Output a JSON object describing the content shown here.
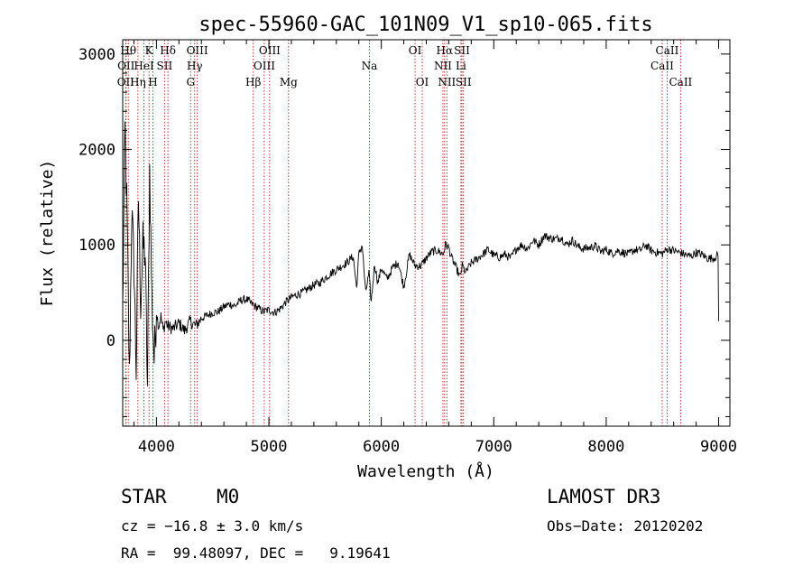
{
  "chart_data": {
    "type": "line",
    "title": "spec-55960-GAC_101N09_V1_sp10-065.fits",
    "xlabel": "Wavelength (Å)",
    "ylabel": "Flux (relative)",
    "xlim": [
      3700,
      9100
    ],
    "ylim": [
      -900,
      3150
    ],
    "xticks": [
      4000,
      5000,
      6000,
      7000,
      8000,
      9000
    ],
    "xtick_labels": [
      "4000",
      "5000",
      "6000",
      "7000",
      "8000",
      "9000"
    ],
    "yticks": [
      0,
      1000,
      2000,
      3000
    ],
    "ytick_labels": [
      "0",
      "1000",
      "2000",
      "3000"
    ],
    "line_color": "#000000",
    "marker_color": "#b22222",
    "spectrum": {
      "wavelength": [
        3700,
        3720,
        3740,
        3760,
        3780,
        3800,
        3820,
        3840,
        3860,
        3880,
        3900,
        3920,
        3940,
        3960,
        3980,
        4000,
        4020,
        4040,
        4060,
        4080,
        4100,
        4150,
        4200,
        4250,
        4300,
        4350,
        4400,
        4450,
        4500,
        4550,
        4600,
        4650,
        4700,
        4750,
        4800,
        4850,
        4900,
        4950,
        5000,
        5050,
        5100,
        5150,
        5200,
        5250,
        5300,
        5350,
        5400,
        5450,
        5500,
        5550,
        5600,
        5650,
        5700,
        5750,
        5780,
        5800,
        5830,
        5860,
        5890,
        5910,
        5940,
        5970,
        6000,
        6050,
        6100,
        6150,
        6200,
        6250,
        6300,
        6350,
        6400,
        6450,
        6500,
        6550,
        6570,
        6600,
        6620,
        6650,
        6680,
        6700,
        6720,
        6750,
        6800,
        6850,
        6900,
        6950,
        7000,
        7050,
        7100,
        7150,
        7200,
        7250,
        7300,
        7350,
        7400,
        7450,
        7500,
        7550,
        7600,
        7650,
        7700,
        7750,
        7800,
        7850,
        7900,
        7950,
        8000,
        8050,
        8100,
        8150,
        8200,
        8250,
        8300,
        8350,
        8400,
        8450,
        8500,
        8550,
        8600,
        8650,
        8700,
        8750,
        8800,
        8850,
        8900,
        8950,
        8980,
        9000
      ],
      "flux": [
        300,
        2200,
        1200,
        -400,
        1350,
        800,
        -300,
        1500,
        400,
        1000,
        900,
        -500,
        1800,
        400,
        -200,
        300,
        150,
        250,
        100,
        200,
        150,
        120,
        180,
        100,
        200,
        150,
        230,
        260,
        290,
        300,
        350,
        380,
        360,
        420,
        430,
        380,
        340,
        300,
        320,
        290,
        330,
        400,
        450,
        480,
        500,
        540,
        580,
        600,
        650,
        700,
        740,
        780,
        820,
        880,
        550,
        900,
        1000,
        500,
        700,
        400,
        800,
        600,
        760,
        640,
        760,
        820,
        560,
        900,
        780,
        780,
        860,
        930,
        940,
        900,
        1000,
        970,
        880,
        800,
        720,
        660,
        780,
        710,
        810,
        850,
        900,
        950,
        890,
        870,
        900,
        860,
        960,
        1000,
        960,
        1050,
        1000,
        1100,
        1070,
        1060,
        1080,
        1000,
        1050,
        980,
        960,
        970,
        990,
        930,
        950,
        910,
        940,
        920,
        900,
        950,
        940,
        1000,
        940,
        920,
        910,
        960,
        940,
        920,
        900,
        880,
        920,
        900,
        860,
        860,
        880,
        900,
        850,
        200
      ]
    },
    "line_markers": [
      {
        "label": "OII",
        "wavelength": 3727,
        "row": 2
      },
      {
        "label": "OII",
        "wavelength": 3730,
        "row": 1
      },
      {
        "label": "Hθ",
        "wavelength": 3750,
        "row": 0
      },
      {
        "label": "Hη",
        "wavelength": 3835,
        "row": 2
      },
      {
        "label": "HeI",
        "wavelength": 3889,
        "row": 1
      },
      {
        "label": "K",
        "wavelength": 3934,
        "row": 0
      },
      {
        "label": "H",
        "wavelength": 3969,
        "row": 2
      },
      {
        "label": "SII",
        "wavelength": 4072,
        "row": 1
      },
      {
        "label": "Hδ",
        "wavelength": 4102,
        "row": 0
      },
      {
        "label": "G",
        "wavelength": 4304,
        "row": 2
      },
      {
        "label": "Hγ",
        "wavelength": 4340,
        "row": 1
      },
      {
        "label": "OIII",
        "wavelength": 4363,
        "row": 0
      },
      {
        "label": "Hβ",
        "wavelength": 4861,
        "row": 2
      },
      {
        "label": "OIII",
        "wavelength": 4959,
        "row": 1
      },
      {
        "label": "OIII",
        "wavelength": 5007,
        "row": 0
      },
      {
        "label": "Mg",
        "wavelength": 5175,
        "row": 2
      },
      {
        "label": "Na",
        "wavelength": 5894,
        "row": 1
      },
      {
        "label": "OI",
        "wavelength": 6300,
        "row": 0
      },
      {
        "label": "OI",
        "wavelength": 6364,
        "row": 2
      },
      {
        "label": "NII",
        "wavelength": 6548,
        "row": 1
      },
      {
        "label": "Hα",
        "wavelength": 6563,
        "row": 0
      },
      {
        "label": "NII",
        "wavelength": 6583,
        "row": 2
      },
      {
        "label": "Li",
        "wavelength": 6708,
        "row": 1
      },
      {
        "label": "SII",
        "wavelength": 6717,
        "row": 0
      },
      {
        "label": "SII",
        "wavelength": 6731,
        "row": 2
      },
      {
        "label": "CaII",
        "wavelength": 8498,
        "row": 1
      },
      {
        "label": "CaII",
        "wavelength": 8542,
        "row": 0
      },
      {
        "label": "CaII",
        "wavelength": 8662,
        "row": 2
      }
    ]
  },
  "footer": {
    "class_label": "STAR",
    "subclass": "M0",
    "survey": "LAMOST DR3",
    "redshift": "cz = −16.8 ± 3.0 km/s",
    "obs_date": "Obs−Date: 20120202",
    "coordinates": "RA =  99.48097, DEC =   9.19641"
  }
}
